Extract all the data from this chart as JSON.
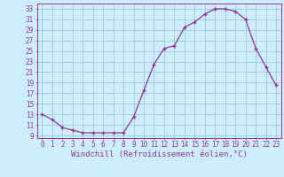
{
  "x": [
    0,
    1,
    2,
    3,
    4,
    5,
    6,
    7,
    8,
    9,
    10,
    11,
    12,
    13,
    14,
    15,
    16,
    17,
    18,
    19,
    20,
    21,
    22,
    23
  ],
  "y": [
    13,
    12,
    10.5,
    10,
    9.5,
    9.5,
    9.5,
    9.5,
    9.5,
    12.5,
    17.5,
    22.5,
    25.5,
    26,
    29.5,
    30.5,
    32,
    33,
    33,
    32.5,
    31,
    25.5,
    22,
    18.5
  ],
  "line_color": "#993399",
  "marker": "+",
  "bg_color": "#cceeff",
  "grid_color": "#99cccc",
  "axis_label_color": "#993399",
  "tick_label_color": "#993399",
  "xlabel": "Windchill (Refroidissement éolien,°C)",
  "ylim_min": 8.5,
  "ylim_max": 34,
  "ytick_min": 9,
  "ytick_max": 33,
  "ytick_step": 2,
  "xlim_min": -0.5,
  "xlim_max": 23.5,
  "xticks": [
    0,
    1,
    2,
    3,
    4,
    5,
    6,
    7,
    8,
    9,
    10,
    11,
    12,
    13,
    14,
    15,
    16,
    17,
    18,
    19,
    20,
    21,
    22,
    23
  ],
  "tick_fontsize": 5.5,
  "label_fontsize": 6.5
}
